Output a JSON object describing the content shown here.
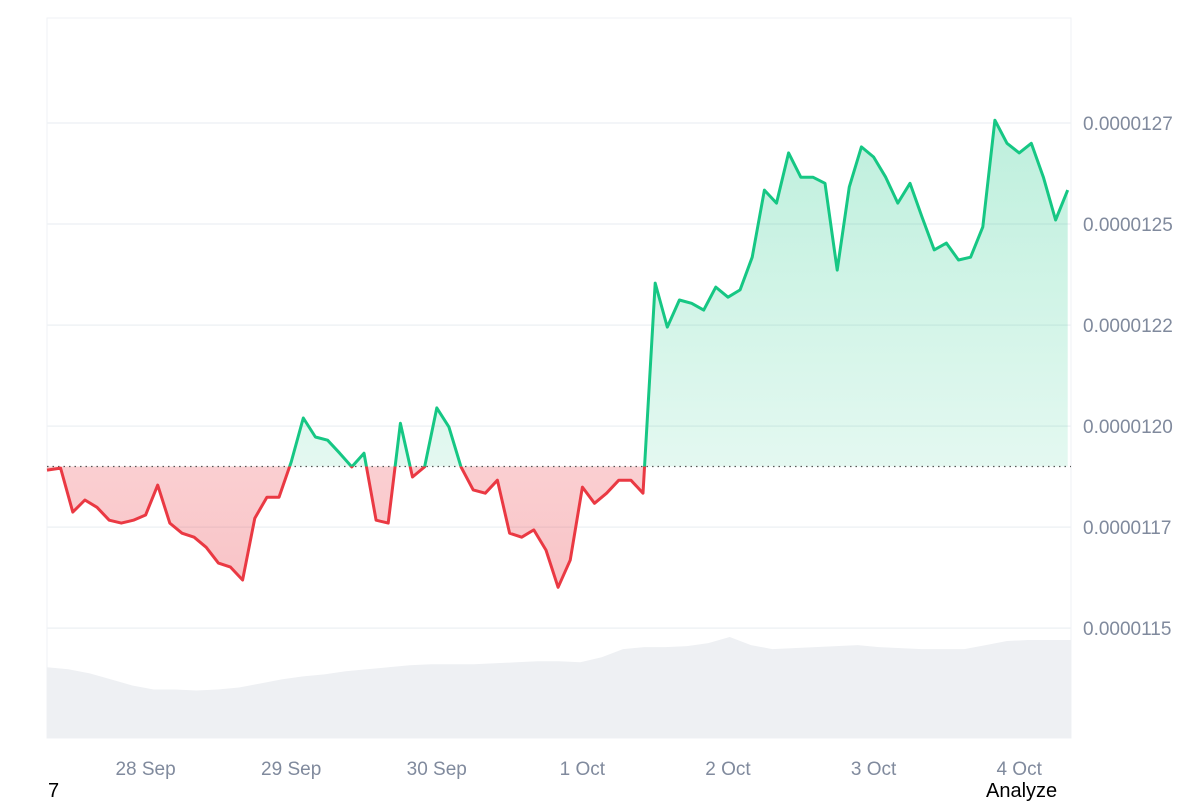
{
  "chart_data": {
    "type": "area",
    "title": "",
    "xlabel": "",
    "ylabel": "",
    "x_start": "27 Sep 08:00",
    "x_interval_hours": 2,
    "x_tick_labels": [
      "28 Sep",
      "29 Sep",
      "30 Sep",
      "1 Oct",
      "2 Oct",
      "3 Oct",
      "4 Oct"
    ],
    "y_ticks": [
      {
        "value": 1.15e-05,
        "label": "0.0000115"
      },
      {
        "value": 1.175e-05,
        "label": "0.0000117"
      },
      {
        "value": 1.2e-05,
        "label": "0.0000120"
      },
      {
        "value": 1.225e-05,
        "label": "0.0000122"
      },
      {
        "value": 1.25e-05,
        "label": "0.0000125"
      },
      {
        "value": 1.275e-05,
        "label": "0.0000127"
      }
    ],
    "ylim": [
      1.1228e-05,
      1.301e-05
    ],
    "y_axis_position": "right",
    "grid": true,
    "baseline": 1.19e-05,
    "colors": {
      "above": "#16c784",
      "below": "#ea3943",
      "volume": "#eef0f3",
      "grid": "#eff2f5",
      "tick_text": "#808a9d"
    },
    "price": [
      1.1891e-05,
      1.1896e-05,
      1.1787e-05,
      1.1817e-05,
      1.1799e-05,
      1.1767e-05,
      1.176e-05,
      1.1767e-05,
      1.178e-05,
      1.1854e-05,
      1.176e-05,
      1.1735e-05,
      1.1725e-05,
      1.17e-05,
      1.1661e-05,
      1.1651e-05,
      1.1619e-05,
      1.1772e-05,
      1.1824e-05,
      1.1824e-05,
      1.1911e-05,
      1.202e-05,
      1.1973e-05,
      1.1965e-05,
      1.1933e-05,
      1.1899e-05,
      1.1933e-05,
      1.1767e-05,
      1.176e-05,
      1.2007e-05,
      1.1874e-05,
      1.1899e-05,
      1.2045e-05,
      1.1998e-05,
      1.1899e-05,
      1.1842e-05,
      1.1834e-05,
      1.1866e-05,
      1.1735e-05,
      1.1725e-05,
      1.1743e-05,
      1.1693e-05,
      1.1601e-05,
      1.1668e-05,
      1.1849e-05,
      1.1809e-05,
      1.1834e-05,
      1.1866e-05,
      1.1866e-05,
      1.1834e-05,
      1.2354e-05,
      1.2245e-05,
      1.2312e-05,
      1.2304e-05,
      1.2287e-05,
      1.2344e-05,
      1.2319e-05,
      1.2337e-05,
      1.2418e-05,
      1.2584e-05,
      1.2552e-05,
      1.2676e-05,
      1.2616e-05,
      1.2616e-05,
      1.2601e-05,
      1.2386e-05,
      1.2592e-05,
      1.2691e-05,
      1.2666e-05,
      1.2616e-05,
      1.2552e-05,
      1.2601e-05,
      1.2517e-05,
      1.2436e-05,
      1.2453e-05,
      1.2411e-05,
      1.2418e-05,
      1.2493e-05,
      1.2757e-05,
      1.27e-05,
      1.2676e-05,
      1.27e-05,
      1.2616e-05,
      1.251e-05,
      1.2584e-05
    ],
    "volume_relative": [
      70,
      68,
      64,
      58,
      52,
      48,
      48,
      47,
      48,
      50,
      54,
      58,
      61,
      63,
      66,
      68,
      70,
      72,
      73,
      73,
      73,
      74,
      75,
      76,
      76,
      75,
      80,
      88,
      90,
      90,
      91,
      94,
      100,
      92,
      88,
      89,
      90,
      91,
      92,
      90,
      89,
      88,
      88,
      88,
      92,
      96,
      97,
      97,
      97
    ]
  },
  "footer": {
    "left_text": "7",
    "right_text": "Analyze"
  }
}
